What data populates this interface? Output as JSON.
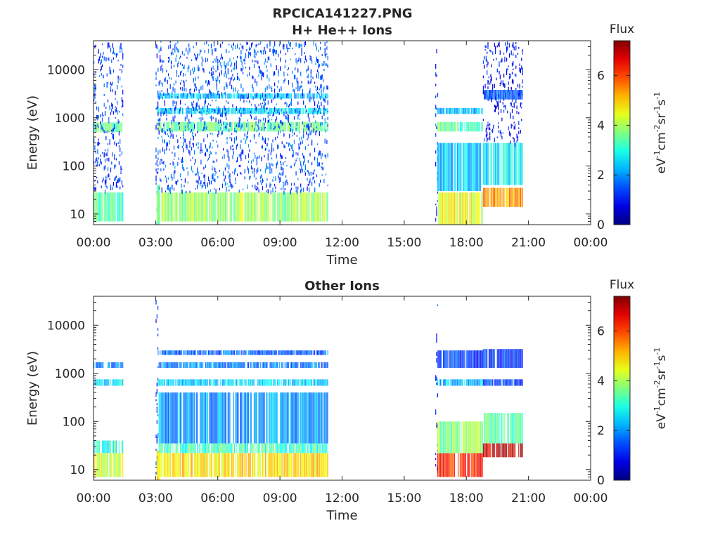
{
  "figure_title": "RPCICA141227.PNG",
  "chart_data": [
    {
      "type": "heatmap",
      "title": "H+ He++ Ions",
      "xlabel": "Time",
      "ylabel": "Energy (eV)",
      "y_scale": "log",
      "ylim": [
        6,
        40000
      ],
      "xlim_hours": [
        0,
        24
      ],
      "x_ticks": [
        "00:00",
        "03:00",
        "06:00",
        "09:00",
        "12:00",
        "15:00",
        "18:00",
        "21:00",
        "00:00"
      ],
      "y_ticks": [
        {
          "value": 10,
          "label": "10"
        },
        {
          "value": 100,
          "label": "100"
        },
        {
          "value": 1000,
          "label": "1000"
        },
        {
          "value": 10000,
          "label": "10000"
        }
      ],
      "colorbar": {
        "title": "Flux",
        "label": "eV-1cm-2sr-1s-1",
        "range": [
          0,
          7.4
        ],
        "ticks": [
          0,
          2,
          4,
          6
        ],
        "colormap": "jet"
      },
      "data_intervals_hours": [
        [
          0.0,
          1.4
        ],
        [
          3.0,
          11.3
        ],
        [
          16.5,
          20.7
        ]
      ],
      "bands": [
        {
          "t": [
            0.0,
            1.4
          ],
          "e": [
            7,
            28
          ],
          "flux": 3.3
        },
        {
          "t": [
            0.0,
            1.4
          ],
          "e": [
            500,
            800
          ],
          "flux": 3.6
        },
        {
          "t": [
            0.0,
            1.4
          ],
          "e": [
            30,
            40000
          ],
          "flux": 1.3
        },
        {
          "t": [
            3.0,
            3.1
          ],
          "e": [
            6,
            40000
          ],
          "flux": 1.2
        },
        {
          "t": [
            3.05,
            3.2
          ],
          "e": [
            6,
            40
          ],
          "flux": 3.5
        },
        {
          "t": [
            3.1,
            11.3
          ],
          "e": [
            7,
            28
          ],
          "flux": 3.9
        },
        {
          "t": [
            3.1,
            11.3
          ],
          "e": [
            520,
            820
          ],
          "flux": 3.6
        },
        {
          "t": [
            3.1,
            11.3
          ],
          "e": [
            1200,
            1600
          ],
          "flux": 2.6
        },
        {
          "t": [
            3.1,
            11.3
          ],
          "e": [
            2500,
            3200
          ],
          "flux": 2.3
        },
        {
          "t": [
            3.1,
            11.3
          ],
          "e": [
            30,
            40000
          ],
          "flux": 1.5
        },
        {
          "t": [
            16.5,
            16.6
          ],
          "e": [
            6,
            40000
          ],
          "flux": 1.2
        },
        {
          "t": [
            16.6,
            18.8
          ],
          "e": [
            6,
            28
          ],
          "flux": 4.5
        },
        {
          "t": [
            16.6,
            18.8
          ],
          "e": [
            520,
            820
          ],
          "flux": 3.4
        },
        {
          "t": [
            16.6,
            18.8
          ],
          "e": [
            1200,
            1600
          ],
          "flux": 2.2
        },
        {
          "t": [
            16.6,
            18.8
          ],
          "e": [
            30,
            300
          ],
          "flux": 2.4
        },
        {
          "t": [
            18.8,
            20.7
          ],
          "e": [
            14,
            35
          ],
          "flux": 5.4
        },
        {
          "t": [
            18.8,
            20.7
          ],
          "e": [
            40,
            300
          ],
          "flux": 2.7
        },
        {
          "t": [
            18.8,
            20.7
          ],
          "e": [
            300,
            40000
          ],
          "flux": 1.0
        },
        {
          "t": [
            18.8,
            20.7
          ],
          "e": [
            2400,
            3800
          ],
          "flux": 1.5
        }
      ]
    },
    {
      "type": "heatmap",
      "title": "Other Ions",
      "xlabel": "Time",
      "ylabel": "Energy (eV)",
      "y_scale": "log",
      "ylim": [
        6,
        40000
      ],
      "xlim_hours": [
        0,
        24
      ],
      "x_ticks": [
        "00:00",
        "03:00",
        "06:00",
        "09:00",
        "12:00",
        "15:00",
        "18:00",
        "21:00",
        "00:00"
      ],
      "y_ticks": [
        {
          "value": 10,
          "label": "10"
        },
        {
          "value": 100,
          "label": "100"
        },
        {
          "value": 1000,
          "label": "1000"
        },
        {
          "value": 10000,
          "label": "10000"
        }
      ],
      "colorbar": {
        "title": "Flux",
        "label": "eV-1cm-2sr-1s-1",
        "range": [
          0,
          7.4
        ],
        "ticks": [
          0,
          2,
          4,
          6
        ],
        "colormap": "jet"
      },
      "data_intervals_hours": [
        [
          0.0,
          1.4
        ],
        [
          3.0,
          11.3
        ],
        [
          16.5,
          20.7
        ]
      ],
      "bands": [
        {
          "t": [
            0.0,
            1.4
          ],
          "e": [
            7,
            22
          ],
          "flux": 4.4
        },
        {
          "t": [
            0.0,
            1.4
          ],
          "e": [
            22,
            40
          ],
          "flux": 3.0
        },
        {
          "t": [
            0.0,
            1.4
          ],
          "e": [
            550,
            750
          ],
          "flux": 2.6
        },
        {
          "t": [
            0.0,
            1.4
          ],
          "e": [
            1300,
            1700
          ],
          "flux": 1.8
        },
        {
          "t": [
            3.0,
            3.1
          ],
          "e": [
            6,
            40000
          ],
          "flux": 1.2
        },
        {
          "t": [
            3.05,
            3.2
          ],
          "e": [
            6,
            25
          ],
          "flux": 5.0
        },
        {
          "t": [
            3.1,
            11.3
          ],
          "e": [
            7,
            22
          ],
          "flux": 4.8
        },
        {
          "t": [
            3.1,
            11.3
          ],
          "e": [
            22,
            35
          ],
          "flux": 3.2
        },
        {
          "t": [
            3.1,
            11.3
          ],
          "e": [
            550,
            750
          ],
          "flux": 2.5
        },
        {
          "t": [
            3.1,
            11.3
          ],
          "e": [
            1300,
            1700
          ],
          "flux": 1.8
        },
        {
          "t": [
            3.1,
            11.3
          ],
          "e": [
            2400,
            3000
          ],
          "flux": 1.6
        },
        {
          "t": [
            3.1,
            11.3
          ],
          "e": [
            35,
            400
          ],
          "flux": 2.0
        },
        {
          "t": [
            16.5,
            16.6
          ],
          "e": [
            6,
            40000
          ],
          "flux": 1.2
        },
        {
          "t": [
            16.6,
            18.8
          ],
          "e": [
            7,
            22
          ],
          "flux": 6.3
        },
        {
          "t": [
            16.6,
            18.8
          ],
          "e": [
            22,
            100
          ],
          "flux": 3.8
        },
        {
          "t": [
            16.6,
            18.8
          ],
          "e": [
            550,
            750
          ],
          "flux": 2.3
        },
        {
          "t": [
            16.6,
            18.8
          ],
          "e": [
            1300,
            3000
          ],
          "flux": 1.3
        },
        {
          "t": [
            18.8,
            20.7
          ],
          "e": [
            18,
            35
          ],
          "flux": 6.8
        },
        {
          "t": [
            18.8,
            20.7
          ],
          "e": [
            35,
            150
          ],
          "flux": 3.4
        },
        {
          "t": [
            18.8,
            20.7
          ],
          "e": [
            550,
            750
          ],
          "flux": 1.3
        },
        {
          "t": [
            18.8,
            20.7
          ],
          "e": [
            1300,
            3200
          ],
          "flux": 1.2
        }
      ]
    }
  ]
}
